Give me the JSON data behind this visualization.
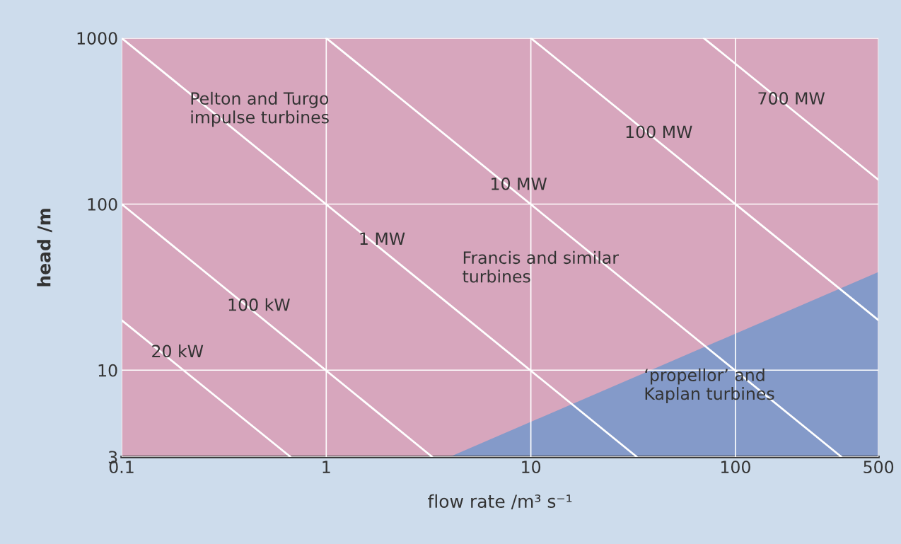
{
  "chart_data": {
    "type": "line",
    "xlabel": "flow rate /m³ s⁻¹",
    "ylabel": "head /m",
    "log": "xy",
    "xlim": [
      0.1,
      500
    ],
    "ylim": [
      3,
      1000
    ],
    "xticks": [
      0.1,
      1,
      10,
      100,
      500
    ],
    "yticks": [
      3,
      10,
      100,
      1000
    ],
    "grid": true,
    "series": [
      {
        "color": "#ffffff",
        "x": [
          0.1,
          0.67
        ],
        "values": [
          20,
          3
        ]
      },
      {
        "color": "#ffffff",
        "x": [
          0.1,
          3.3
        ],
        "values": [
          100,
          3
        ]
      },
      {
        "color": "#ffffff",
        "x": [
          0.1,
          33
        ],
        "values": [
          1000,
          3
        ]
      },
      {
        "color": "#ffffff",
        "x": [
          1,
          330
        ],
        "values": [
          1000,
          3
        ]
      },
      {
        "color": "#ffffff",
        "x": [
          10,
          500
        ],
        "values": [
          1000,
          20
        ]
      },
      {
        "color": "#ffffff",
        "x": [
          70,
          500
        ],
        "values": [
          1000,
          140
        ]
      }
    ],
    "annotations": [
      {
        "text": "20 kW",
        "x": 0.2,
        "y": 10.5
      },
      {
        "text": "100 kW",
        "x": 0.5,
        "y": 20
      },
      {
        "text": "1 MW",
        "x": 2,
        "y": 50
      },
      {
        "text": "10 MW",
        "x": 9.3,
        "y": 107
      },
      {
        "text": "100 MW",
        "x": 45,
        "y": 220
      },
      {
        "text": "700 MW",
        "x": 200,
        "y": 350
      },
      "Pelton and Turgo\nimpulse turbines",
      "Francis and similar\nturbines",
      "‘propellor’ and\nKaplan turbines"
    ]
  }
}
